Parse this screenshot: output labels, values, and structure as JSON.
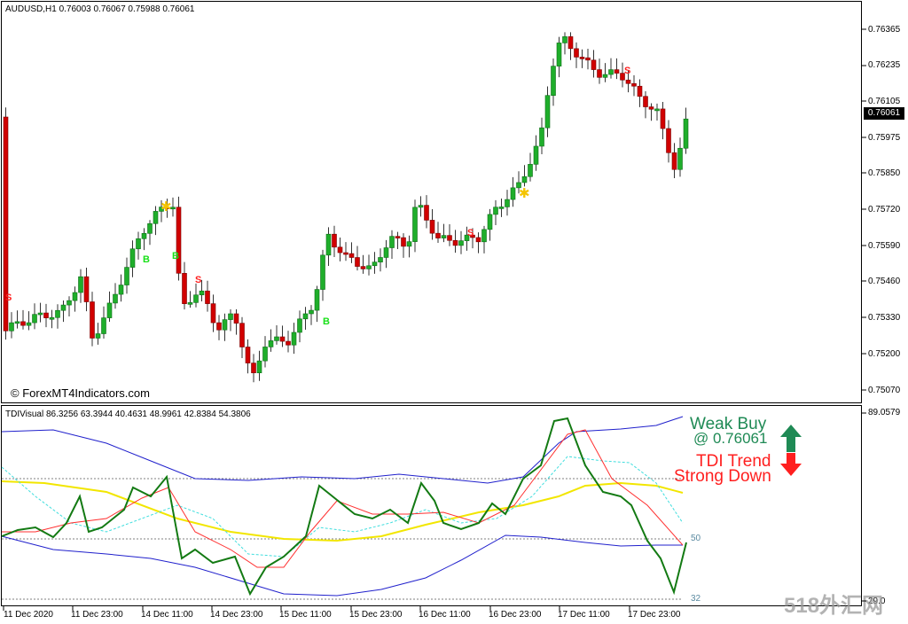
{
  "main": {
    "symbol_line": "AUDUSD,H1  0.76003 0.76067 0.75988 0.76061",
    "copyright": "© ForexMT4Indicators.com",
    "price_tag": "0.76061",
    "price_axis": [
      "0.76365",
      "0.76235",
      "0.76105",
      "0.75975",
      "0.75850",
      "0.75720",
      "0.75590",
      "0.75460",
      "0.75330",
      "0.75200",
      "0.75070"
    ],
    "signal_letters": [
      {
        "text": "S",
        "color": "#ff2020"
      },
      {
        "text": "B",
        "color": "#18e018"
      },
      {
        "text": "B",
        "color": "#18e018"
      },
      {
        "text": "S",
        "color": "#ff2020"
      },
      {
        "text": "B",
        "color": "#18e018"
      },
      {
        "text": "S",
        "color": "#ff2020"
      },
      {
        "text": "S",
        "color": "#ff2020"
      }
    ],
    "star_glyph": "✱"
  },
  "sub": {
    "indicator_line": "TDIVisual 86.3256 63.3944 40.4631 48.9961 42.8384 54.3806",
    "axis_top": "89.0579",
    "axis_bottom": "29.0",
    "level_50": "50",
    "level_32": "32",
    "weak_buy_label": "Weak Buy",
    "weak_buy_price": "@ 0.76061",
    "trend_label": "TDI Trend",
    "trend_state": "Strong Down",
    "up_arrow_color": "#1f8a55",
    "down_arrow_color": "#ff1f1f"
  },
  "time_axis": [
    "11 Dec 2020",
    "11 Dec 23:00",
    "14 Dec 11:00",
    "14 Dec 23:00",
    "15 Dec 11:00",
    "15 Dec 23:00",
    "16 Dec 11:00",
    "16 Dec 23:00",
    "17 Dec 11:00",
    "17 Dec 23:00"
  ],
  "watermark": "518外汇网",
  "colors": {
    "bull": "#1fae2b",
    "bear": "#d10000",
    "rsi": "#137a13",
    "signal": "#ff3030",
    "band": "#2020cc",
    "mid": "#f2e600",
    "trade": "#40dede"
  }
}
